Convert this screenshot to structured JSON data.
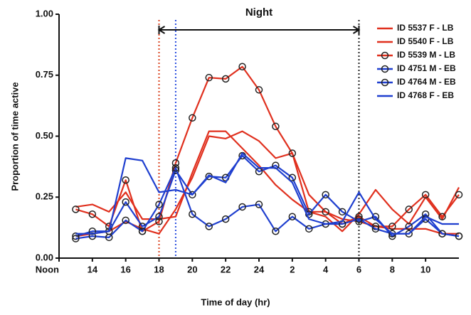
{
  "chart_data": {
    "type": "line",
    "x_label": "Time of day (hr)",
    "y_label": "Proportion of time active",
    "x": [
      13,
      14,
      15,
      16,
      17,
      18,
      19,
      20,
      21,
      22,
      23,
      24,
      25,
      26,
      27,
      28,
      29,
      30,
      31,
      32,
      33,
      34,
      35,
      36
    ],
    "xlim": [
      12,
      36
    ],
    "xticks": [
      {
        "value": 12,
        "label": "Noon"
      },
      14,
      16,
      18,
      20,
      22,
      24,
      {
        "value": 26,
        "label": "2"
      },
      {
        "value": 28,
        "label": "4"
      },
      {
        "value": 30,
        "label": "6"
      },
      {
        "value": 32,
        "label": "8"
      },
      {
        "value": 34,
        "label": "10"
      }
    ],
    "ylim": [
      0,
      1
    ],
    "yticks": [
      {
        "value": 0,
        "label": "0.00"
      },
      {
        "value": 0.25,
        "label": "0.25"
      },
      {
        "value": 0.5,
        "label": "0.50"
      },
      {
        "value": 0.75,
        "label": "0.75"
      },
      {
        "value": 1,
        "label": "1.00"
      }
    ],
    "legend": "upper right",
    "vlines": [
      {
        "x": 18,
        "color": "#d9401c"
      },
      {
        "x": 19,
        "color": "#2a4ee0"
      },
      {
        "x": 30,
        "color": "#222222"
      }
    ],
    "span": {
      "text": "Night",
      "from": 18,
      "to": 30
    },
    "series": [
      {
        "name": "ID 5537 F - LB",
        "color": "#e0301e",
        "markers": false,
        "values": [
          0.21,
          0.22,
          0.19,
          0.27,
          0.16,
          0.16,
          0.17,
          0.35,
          0.52,
          0.52,
          0.45,
          0.38,
          0.3,
          0.24,
          0.19,
          0.17,
          0.11,
          0.18,
          0.28,
          0.2,
          0.14,
          0.25,
          0.16,
          0.29
        ]
      },
      {
        "name": "ID 5540 F - LB",
        "color": "#e0301e",
        "markers": false,
        "values": [
          0.09,
          0.1,
          0.11,
          0.15,
          0.12,
          0.1,
          0.2,
          0.33,
          0.5,
          0.49,
          0.52,
          0.48,
          0.41,
          0.43,
          0.26,
          0.19,
          0.16,
          0.15,
          0.13,
          0.12,
          0.12,
          0.12,
          0.1,
          0.1
        ]
      },
      {
        "name": "ID 5539 M - LB",
        "color": "#e0301e",
        "markers": true,
        "values": [
          0.2,
          0.18,
          0.13,
          0.32,
          0.11,
          0.15,
          0.39,
          0.575,
          0.74,
          0.735,
          0.785,
          0.69,
          0.54,
          0.43,
          0.19,
          0.19,
          0.14,
          0.17,
          0.13,
          0.13,
          0.2,
          0.26,
          0.17,
          0.26
        ]
      },
      {
        "name": "ID 4751 M - EB",
        "color": "#1f3fcf",
        "markers": true,
        "values": [
          0.09,
          0.11,
          0.11,
          0.23,
          0.13,
          0.17,
          0.36,
          0.26,
          0.335,
          0.33,
          0.42,
          0.355,
          0.38,
          0.33,
          0.18,
          0.26,
          0.19,
          0.15,
          0.17,
          0.09,
          0.13,
          0.18,
          0.1,
          0.09
        ]
      },
      {
        "name": "ID 4764 M - EB",
        "color": "#1f3fcf",
        "markers": true,
        "values": [
          0.08,
          0.09,
          0.085,
          0.155,
          0.11,
          0.22,
          0.37,
          0.18,
          0.13,
          0.16,
          0.21,
          0.22,
          0.11,
          0.17,
          0.12,
          0.14,
          0.14,
          0.16,
          0.12,
          0.1,
          0.1,
          0.16,
          0.1,
          0.09
        ]
      },
      {
        "name": "ID 4768 F - EB",
        "color": "#1f3fcf",
        "markers": false,
        "values": [
          0.1,
          0.1,
          0.11,
          0.41,
          0.4,
          0.27,
          0.28,
          0.26,
          0.34,
          0.31,
          0.43,
          0.37,
          0.37,
          0.31,
          0.16,
          0.14,
          0.15,
          0.27,
          0.16,
          0.1,
          0.1,
          0.17,
          0.14,
          0.14
        ]
      }
    ]
  }
}
